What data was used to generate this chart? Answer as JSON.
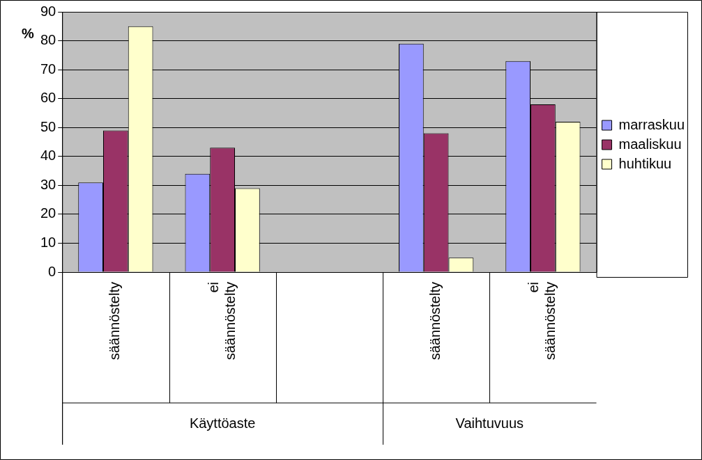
{
  "chart_data": {
    "type": "bar",
    "ylabel": "%",
    "categories": [
      "säännöstelty",
      "ei säännöstelty",
      null,
      "säännöstelty",
      "ei säännöstelty"
    ],
    "annotations": [
      "Käyttöaste",
      "Vaihtuvuus"
    ],
    "series": [
      {
        "name": "marraskuu",
        "color": "#9999ff",
        "values": [
          31,
          34,
          null,
          79,
          73
        ]
      },
      {
        "name": "maaliskuu",
        "color": "#993366",
        "values": [
          49,
          43,
          null,
          48,
          58
        ]
      },
      {
        "name": "huhtikuu",
        "color": "#ffffcc",
        "values": [
          85,
          29,
          null,
          5,
          52
        ]
      }
    ],
    "ylim": [
      0,
      90
    ],
    "yticks": [
      0,
      10,
      20,
      30,
      40,
      50,
      60,
      70,
      80,
      90
    ],
    "grid": "y",
    "legend": "right"
  }
}
